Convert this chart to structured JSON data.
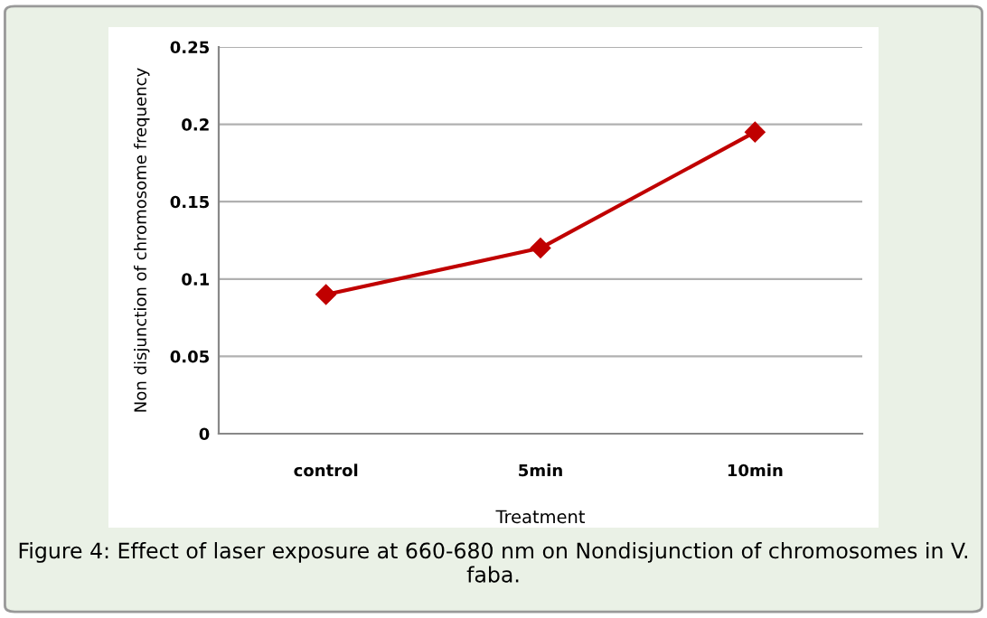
{
  "chart_data": {
    "type": "line",
    "xlabel": "Treatment",
    "ylabel": "Non disjunction of chromosome frequency",
    "categories": [
      "control",
      "5min",
      "10min"
    ],
    "series": [
      {
        "color": "#c00000",
        "values": [
          0.09,
          0.12,
          0.195
        ]
      }
    ],
    "ylim": [
      0,
      0.25
    ],
    "yticks": [
      0,
      0.05,
      0.1,
      0.15,
      0.2,
      0.25
    ],
    "grid": "y",
    "marker": "diamond",
    "line_style": "solid",
    "annotations": [
      "Figure 4: Effect of laser exposure at 660-680 nm on Nondisjunction of chromosomes in V. faba."
    ]
  }
}
